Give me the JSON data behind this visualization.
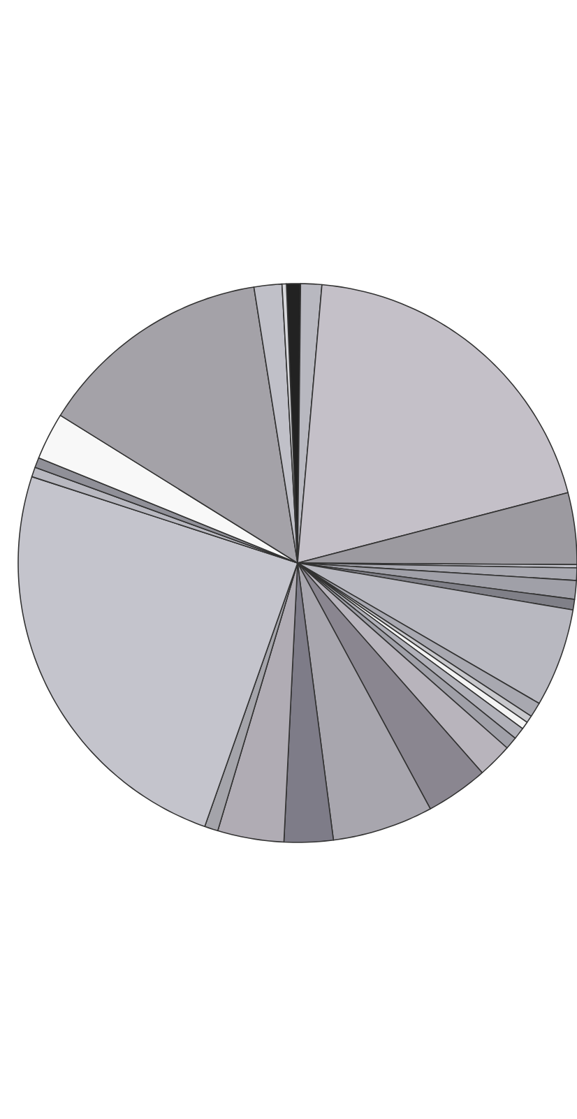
{
  "chart_data": {
    "type": "pie",
    "categories": [
      null,
      null,
      null,
      null,
      null,
      null,
      null,
      null,
      null,
      null,
      null,
      null,
      null,
      null,
      null,
      null,
      null,
      null,
      null,
      null,
      null,
      null,
      null,
      null,
      null,
      null,
      null
    ],
    "values": [
      0.81,
      1.22,
      19.56,
      4.14,
      0.19,
      0.72,
      1.08,
      0.61,
      5.69,
      0.86,
      0.42,
      0.44,
      0.69,
      0.72,
      2.0,
      3.61,
      5.83,
      2.83,
      3.83,
      0.78,
      24.61,
      0.56,
      0.58,
      2.72,
      13.64,
      1.61,
      0.25
    ],
    "colors": [
      "#222222",
      "#b8b8c0",
      "#c4c0c8",
      "#9c9aa0",
      "#c0c0c8",
      "#a8a8b0",
      "#a0a0a8",
      "#808088",
      "#b8b8c0",
      "#a8a8b0",
      "#c8c8cc",
      "#f4f4f4",
      "#b0b0b8",
      "#a0a0a8",
      "#b8b4bc",
      "#8a8690",
      "#a8a6ae",
      "#7e7c88",
      "#b0acb4",
      "#a4a4aa",
      "#c4c4cc",
      "#b8b8c0",
      "#909098",
      "#f8f8f8",
      "#a4a2a8",
      "#c0c0c8",
      "#d8d8dc"
    ]
  }
}
